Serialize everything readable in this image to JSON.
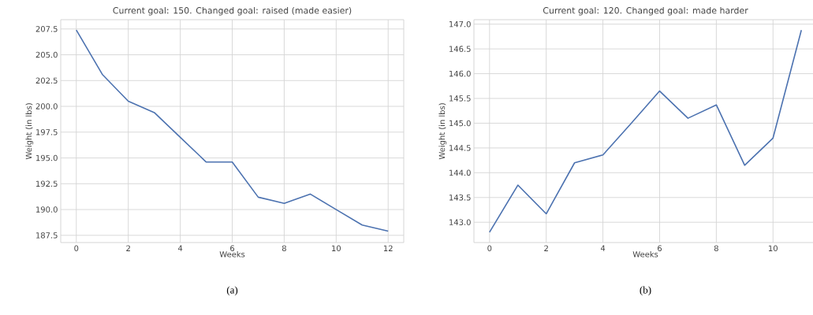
{
  "chart_data": [
    {
      "type": "line",
      "title": "Current goal: 150. Changed goal: raised (made easier)",
      "xlabel": "Weeks",
      "ylabel": "Weight (in lbs)",
      "x": [
        0,
        1,
        2,
        3,
        4,
        5,
        6,
        7,
        8,
        9,
        10,
        11,
        12
      ],
      "series": [
        {
          "color": "#4c72b0",
          "values": [
            207.4,
            203.1,
            200.5,
            199.4,
            197.0,
            194.6,
            194.6,
            191.2,
            190.6,
            191.5,
            190.0,
            188.5,
            187.9
          ]
        }
      ],
      "xlim": [
        -0.6,
        12.6
      ],
      "ylim": [
        186.8,
        208.4
      ],
      "xticks": [
        0,
        2,
        4,
        6,
        8,
        10,
        12
      ],
      "yticks": [
        {
          "value": 187.5,
          "label": "187.5"
        },
        {
          "value": 190,
          "label": "190.0"
        },
        {
          "value": 192.5,
          "label": "192.5"
        },
        {
          "value": 195,
          "label": "195.0"
        },
        {
          "value": 197.5,
          "label": "197.5"
        },
        {
          "value": 200,
          "label": "200.0"
        },
        {
          "value": 202.5,
          "label": "202.5"
        },
        {
          "value": 205,
          "label": "205.0"
        },
        {
          "value": 207.5,
          "label": "207.5"
        }
      ],
      "grid": true,
      "marker": "none",
      "line_style": "solid",
      "annotations": [
        "(a)"
      ]
    },
    {
      "type": "line",
      "title": "Current goal: 120. Changed goal: made harder",
      "xlabel": "Weeks",
      "ylabel": "Weight (in lbs)",
      "x": [
        0,
        1,
        2,
        3,
        4,
        5,
        6,
        7,
        8,
        9,
        10,
        11
      ],
      "series": [
        {
          "color": "#4c72b0",
          "values": [
            142.8,
            143.75,
            143.17,
            144.2,
            144.36,
            145.0,
            145.65,
            145.1,
            145.37,
            144.15,
            144.7,
            146.88
          ]
        }
      ],
      "xlim": [
        -0.55,
        11.55
      ],
      "ylim": [
        142.59,
        147.09
      ],
      "xticks": [
        0,
        2,
        4,
        6,
        8,
        10
      ],
      "yticks": [
        {
          "value": 143,
          "label": "143.0"
        },
        {
          "value": 143.5,
          "label": "143.5"
        },
        {
          "value": 144,
          "label": "144.0"
        },
        {
          "value": 144.5,
          "label": "144.5"
        },
        {
          "value": 145,
          "label": "145.0"
        },
        {
          "value": 145.5,
          "label": "145.5"
        },
        {
          "value": 146,
          "label": "146.0"
        },
        {
          "value": 146.5,
          "label": "146.5"
        },
        {
          "value": 147,
          "label": "147.0"
        }
      ],
      "grid": true,
      "marker": "none",
      "line_style": "solid",
      "annotations": [
        "(b)"
      ]
    }
  ]
}
